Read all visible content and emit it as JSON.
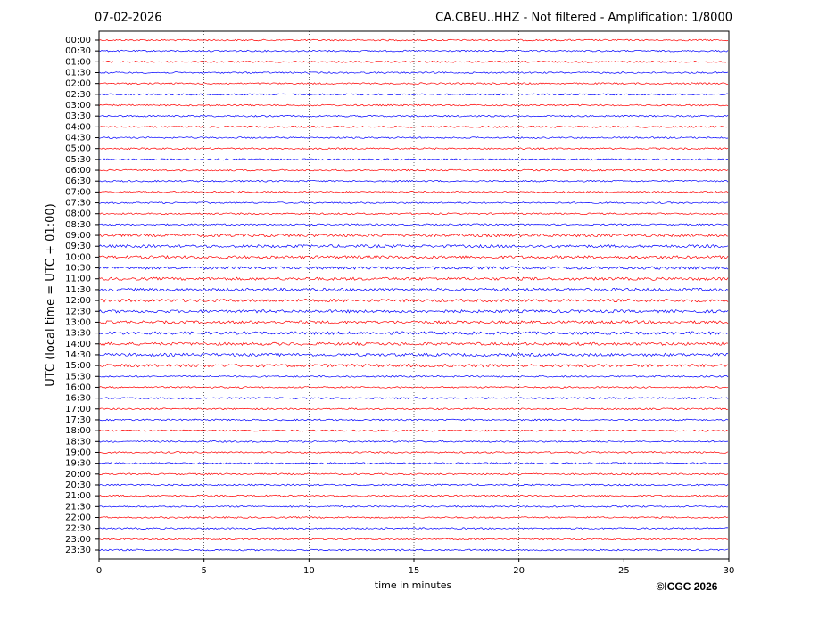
{
  "chart_data": {
    "type": "helicorder",
    "title_left": "07-02-2026",
    "title": "CA.CBEU..HHZ - Not filtered - Amplification: 1/8000",
    "xlabel": "time in minutes",
    "ylabel": "UTC (local time = UTC + 01:00)",
    "credit": "©ICGC 2026",
    "categories": [
      "00:00",
      "00:30",
      "01:00",
      "01:30",
      "02:00",
      "02:30",
      "03:00",
      "03:30",
      "04:00",
      "04:30",
      "05:00",
      "05:30",
      "06:00",
      "06:30",
      "07:00",
      "07:30",
      "08:00",
      "08:30",
      "09:00",
      "09:30",
      "10:00",
      "10:30",
      "11:00",
      "11:30",
      "12:00",
      "12:30",
      "13:00",
      "13:30",
      "14:00",
      "14:30",
      "15:00",
      "15:30",
      "16:00",
      "16:30",
      "17:00",
      "17:30",
      "18:00",
      "18:30",
      "19:00",
      "19:30",
      "20:00",
      "20:30",
      "21:00",
      "21:30",
      "22:00",
      "22:30",
      "23:00",
      "23:30"
    ],
    "colors": [
      "#ff0000",
      "#0000ff"
    ],
    "xlim": [
      0,
      30
    ],
    "xticks": [
      0,
      5,
      10,
      15,
      20,
      25,
      30
    ],
    "grid": true
  }
}
